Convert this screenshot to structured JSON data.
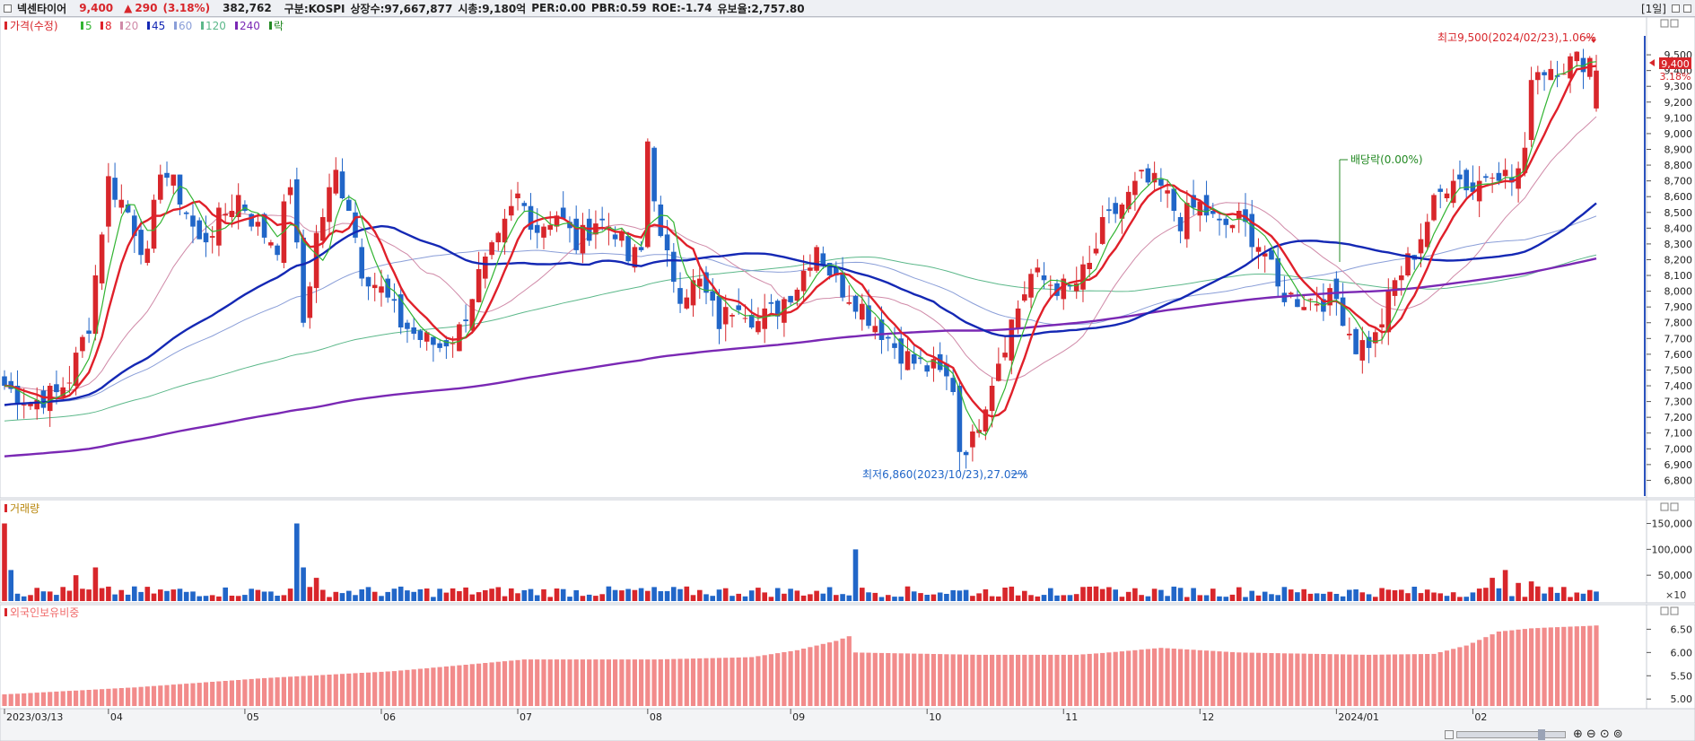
{
  "header": {
    "stock_name": "넥센타이어",
    "price": "9,400",
    "change_arrow": "▲",
    "change": "290",
    "change_pct": "(3.18%)",
    "volume": "382,762",
    "market": "구분:KOSPI",
    "shares": "상장수:97,667,877",
    "market_cap": "시총:9,180억",
    "per": "PER:0.00",
    "pbr": "PBR:0.59",
    "roe": "ROE:-1.74",
    "float_ratio": "유보율:2,757.80",
    "period": "[1일]",
    "colors": {
      "up": "#d8262b",
      "down": "#2166c8"
    }
  },
  "price_panel": {
    "legend": {
      "main": "가격(수정)",
      "ma": [
        {
          "label": "5",
          "color": "#32b432"
        },
        {
          "label": "8",
          "color": "#e0202a"
        },
        {
          "label": "20",
          "color": "#d08aa8"
        },
        {
          "label": "45",
          "color": "#1428b4"
        },
        {
          "label": "60",
          "color": "#8a9ed8"
        },
        {
          "label": "120",
          "color": "#5cb88a"
        },
        {
          "label": "240",
          "color": "#7a28b4"
        },
        {
          "label": "락",
          "color": "#248a24"
        }
      ]
    },
    "current_price_label": "9,400",
    "current_pct_label": "3.18%",
    "high_annotation": "최고9,500(2024/02/23),1.06%",
    "low_annotation": "최저6,860(2023/10/23),27.02%",
    "dividend_annotation": "배당락(0.00%)"
  },
  "volume_panel": {
    "title": "거래량",
    "unit_label": "×10"
  },
  "foreign_panel": {
    "title": "외국인보유비중"
  },
  "chart_data": [
    {
      "type": "candlestick",
      "title": "",
      "y_ticks": [
        6800,
        6900,
        7000,
        7100,
        7200,
        7300,
        7400,
        7500,
        7600,
        7700,
        7800,
        7900,
        8000,
        8100,
        8200,
        8300,
        8400,
        8500,
        8600,
        8700,
        8800,
        8900,
        9000,
        9100,
        9200,
        9300,
        9400,
        9500
      ],
      "ylim": [
        6700,
        9620
      ],
      "x_month_labels": [
        "2023/03/13",
        "04",
        "05",
        "06",
        "07",
        "08",
        "09",
        "10",
        "11",
        "12",
        "2024/01",
        "02"
      ],
      "x_month_start_index": [
        0,
        16,
        37,
        58,
        79,
        99,
        121,
        142,
        163,
        184,
        205,
        226
      ],
      "trading_days": 246,
      "close_anchors": [
        [
          0,
          7400
        ],
        [
          4,
          7300
        ],
        [
          8,
          7350
        ],
        [
          10,
          7450
        ],
        [
          13,
          7800
        ],
        [
          16,
          8700
        ],
        [
          19,
          8500
        ],
        [
          22,
          8200
        ],
        [
          24,
          8800
        ],
        [
          27,
          8600
        ],
        [
          30,
          8300
        ],
        [
          33,
          8450
        ],
        [
          36,
          8600
        ],
        [
          39,
          8400
        ],
        [
          42,
          8300
        ],
        [
          44,
          8700
        ],
        [
          46,
          7800
        ],
        [
          48,
          8350
        ],
        [
          51,
          8750
        ],
        [
          53,
          8550
        ],
        [
          55,
          8150
        ],
        [
          58,
          8000
        ],
        [
          61,
          7800
        ],
        [
          64,
          7700
        ],
        [
          67,
          7650
        ],
        [
          70,
          7750
        ],
        [
          73,
          8100
        ],
        [
          76,
          8300
        ],
        [
          79,
          8600
        ],
        [
          82,
          8400
        ],
        [
          85,
          8500
        ],
        [
          88,
          8300
        ],
        [
          91,
          8450
        ],
        [
          94,
          8400
        ],
        [
          96,
          8200
        ],
        [
          98,
          8250
        ],
        [
          99,
          8950
        ],
        [
          101,
          8300
        ],
        [
          104,
          8000
        ],
        [
          107,
          8050
        ],
        [
          110,
          7800
        ],
        [
          113,
          7950
        ],
        [
          116,
          7800
        ],
        [
          119,
          7900
        ],
        [
          122,
          8050
        ],
        [
          125,
          8300
        ],
        [
          128,
          8050
        ],
        [
          131,
          7950
        ],
        [
          134,
          7800
        ],
        [
          137,
          7650
        ],
        [
          140,
          7550
        ],
        [
          143,
          7500
        ],
        [
          146,
          7400
        ],
        [
          147,
          7000
        ],
        [
          149,
          7050
        ],
        [
          152,
          7450
        ],
        [
          155,
          7800
        ],
        [
          158,
          8100
        ],
        [
          161,
          8050
        ],
        [
          164,
          8000
        ],
        [
          167,
          8150
        ],
        [
          169,
          8400
        ],
        [
          172,
          8550
        ],
        [
          175,
          8700
        ],
        [
          178,
          8650
        ],
        [
          181,
          8450
        ],
        [
          184,
          8550
        ],
        [
          187,
          8400
        ],
        [
          190,
          8450
        ],
        [
          193,
          8300
        ],
        [
          194,
          8250
        ],
        [
          196,
          8000
        ],
        [
          199,
          7950
        ],
        [
          202,
          7950
        ],
        [
          205,
          7950
        ],
        [
          208,
          7650
        ],
        [
          211,
          7700
        ],
        [
          214,
          8050
        ],
        [
          217,
          8250
        ],
        [
          220,
          8550
        ],
        [
          223,
          8750
        ],
        [
          226,
          8650
        ],
        [
          229,
          8800
        ],
        [
          232,
          8700
        ],
        [
          234,
          8850
        ],
        [
          235,
          9400
        ]
      ],
      "ma_series": [
        {
          "name": "5"
        },
        {
          "name": "8"
        },
        {
          "name": "20"
        },
        {
          "name": "45"
        },
        {
          "name": "60"
        },
        {
          "name": "120"
        },
        {
          "name": "240"
        }
      ],
      "high": {
        "value": 9500,
        "date": "2024/02/23",
        "pct": 1.06
      },
      "low": {
        "value": 6860,
        "date": "2023/10/23",
        "pct": 27.02
      },
      "dividend_ex_date_index": 194,
      "last": {
        "close": 9400,
        "change": 290,
        "change_pct": 3.18
      }
    },
    {
      "type": "bar",
      "title": "",
      "y_ticks": [
        50000,
        100000,
        150000
      ],
      "ylim": [
        0,
        170000
      ],
      "anchors": [
        [
          0,
          150000
        ],
        [
          1,
          60000
        ],
        [
          11,
          50000
        ],
        [
          14,
          65000
        ],
        [
          45,
          150000
        ],
        [
          46,
          65000
        ],
        [
          48,
          45000
        ],
        [
          98,
          25000
        ],
        [
          131,
          100000
        ],
        [
          161,
          25000
        ],
        [
          229,
          45000
        ],
        [
          231,
          60000
        ],
        [
          233,
          35000
        ],
        [
          235,
          38000
        ]
      ],
      "typical": 22000
    },
    {
      "type": "bar",
      "title": "",
      "y_ticks": [
        5.0,
        5.5,
        6.0,
        6.5
      ],
      "ylim": [
        4.85,
        6.72
      ],
      "anchors": [
        [
          0,
          5.1
        ],
        [
          20,
          5.25
        ],
        [
          40,
          5.45
        ],
        [
          60,
          5.6
        ],
        [
          80,
          5.85
        ],
        [
          100,
          5.85
        ],
        [
          115,
          5.9
        ],
        [
          122,
          6.05
        ],
        [
          128,
          6.25
        ],
        [
          130,
          6.35
        ],
        [
          131,
          6.0
        ],
        [
          150,
          5.95
        ],
        [
          165,
          5.95
        ],
        [
          170,
          6.0
        ],
        [
          178,
          6.1
        ],
        [
          190,
          6.0
        ],
        [
          210,
          5.95
        ],
        [
          220,
          5.97
        ],
        [
          225,
          6.15
        ],
        [
          230,
          6.45
        ],
        [
          235,
          6.52
        ]
      ]
    }
  ]
}
